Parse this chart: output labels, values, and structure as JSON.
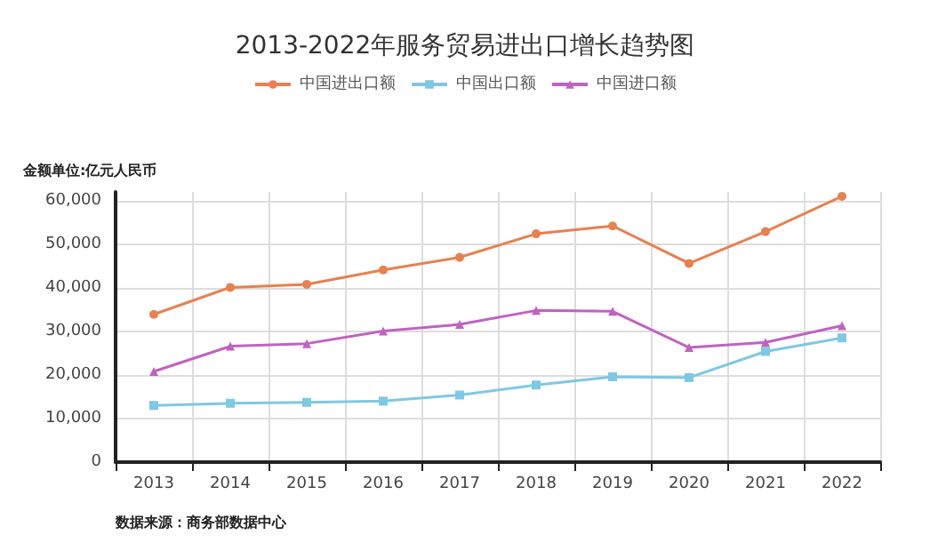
{
  "chart_data": {
    "type": "line",
    "title": "2013-2022年服务贸易进出口增长趋势图",
    "ylabel": "金额单位:亿元人民币",
    "categories": [
      "2013",
      "2014",
      "2015",
      "2016",
      "2017",
      "2018",
      "2019",
      "2020",
      "2021",
      "2022"
    ],
    "series": [
      {
        "name": "中国进出口额",
        "color": "#e8804f",
        "marker": "circle",
        "values": [
          33900,
          40100,
          40800,
          44100,
          47000,
          52400,
          54200,
          45600,
          52900,
          61000
        ]
      },
      {
        "name": "中国出口额",
        "color": "#7ec8e3",
        "marker": "square",
        "values": [
          13000,
          13500,
          13700,
          14000,
          15400,
          17700,
          19600,
          19400,
          25400,
          28500
        ]
      },
      {
        "name": "中国进口额",
        "color": "#c062c0",
        "marker": "triangle",
        "values": [
          20800,
          26600,
          27200,
          30100,
          31600,
          34800,
          34600,
          26300,
          27500,
          31300
        ]
      }
    ],
    "ylim": [
      0,
      62000
    ],
    "yticks": [
      0,
      {
        "value": 10000,
        "label": "10,000"
      },
      {
        "value": 20000,
        "label": "20,000"
      },
      {
        "value": 30000,
        "label": "30,000"
      },
      {
        "value": 40000,
        "label": "40,000"
      },
      {
        "value": 50000,
        "label": "50,000"
      },
      {
        "value": 60000,
        "label": "60,000"
      }
    ],
    "grid": true,
    "legend": "top",
    "annotations": [
      "数据来源：商务部数据中心"
    ]
  }
}
